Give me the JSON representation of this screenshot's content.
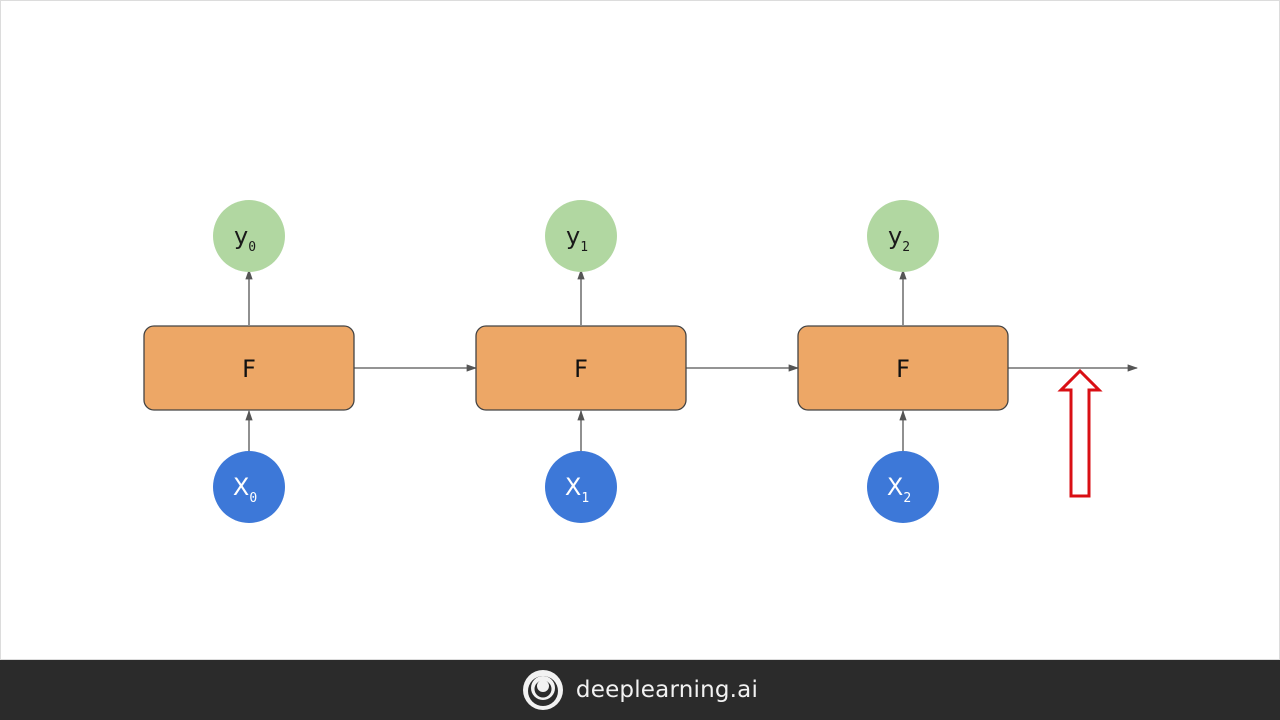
{
  "diagram": {
    "colors": {
      "cell_fill": "#eda766",
      "cell_stroke": "#444444",
      "output_fill": "#b1d7a1",
      "input_fill": "#3d78d8",
      "arrow": "#555555",
      "highlight_arrow": "#d90f14"
    },
    "cells": [
      {
        "label": "F",
        "output": {
          "base": "y",
          "sub": "0"
        },
        "input": {
          "base": "X",
          "sub": "0"
        }
      },
      {
        "label": "F",
        "output": {
          "base": "y",
          "sub": "1"
        },
        "input": {
          "base": "X",
          "sub": "1"
        }
      },
      {
        "label": "F",
        "output": {
          "base": "y",
          "sub": "2"
        },
        "input": {
          "base": "X",
          "sub": "2"
        }
      }
    ]
  },
  "footer": {
    "logo_icon": "deeplearning-spiral-icon",
    "brand": "deeplearning.ai"
  }
}
